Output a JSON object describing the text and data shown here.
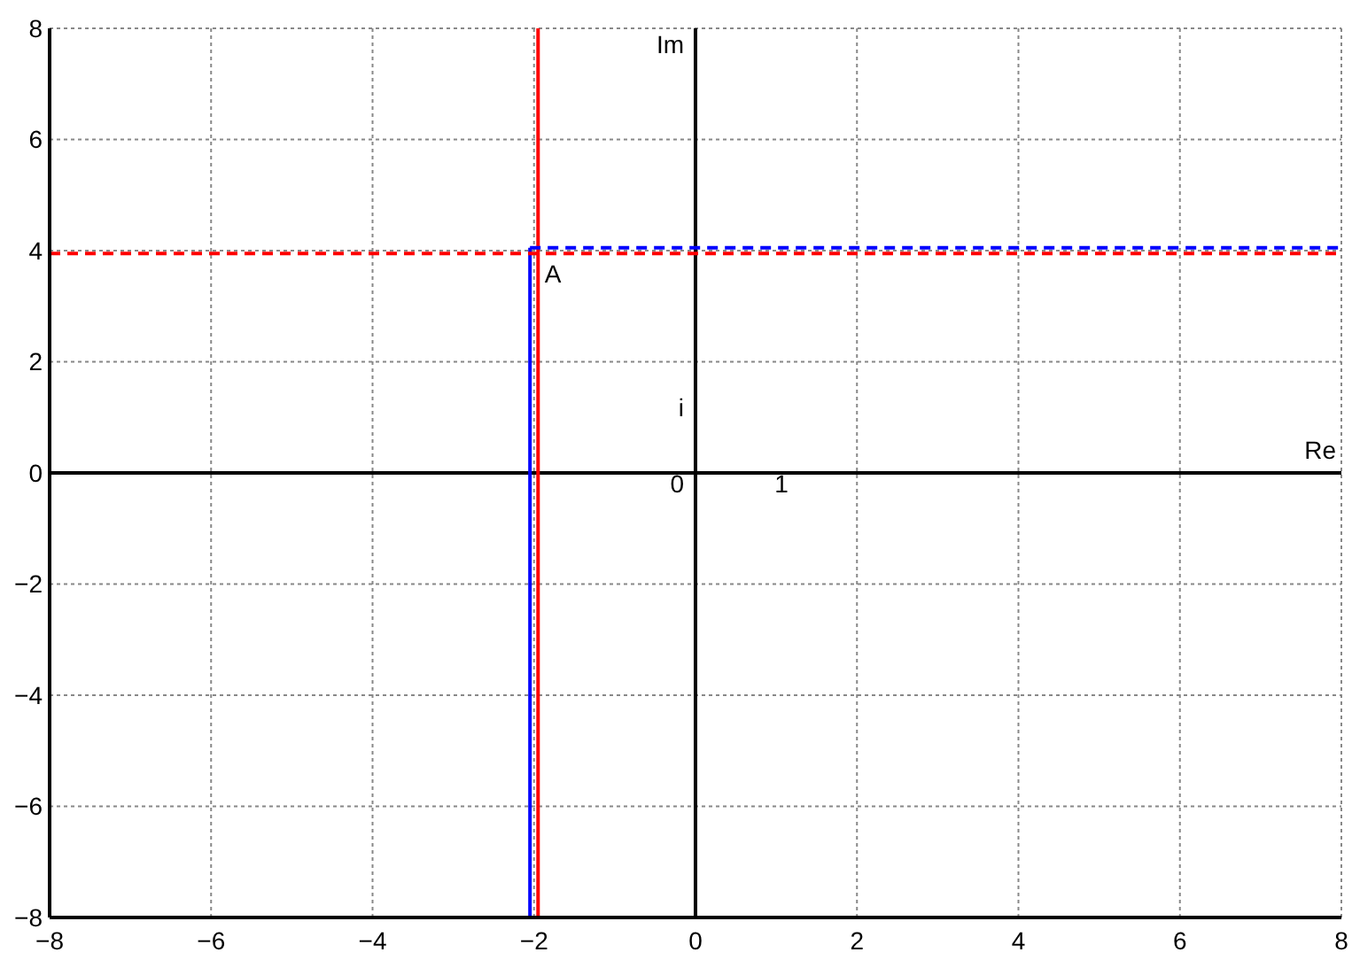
{
  "chart_data": {
    "type": "line",
    "xlim": [
      -8,
      8
    ],
    "ylim": [
      -8,
      8
    ],
    "xticks": [
      -8,
      -6,
      -4,
      -2,
      0,
      2,
      4,
      6,
      8
    ],
    "yticks": [
      -8,
      -6,
      -4,
      -2,
      0,
      2,
      4,
      6,
      8
    ],
    "grid": true,
    "marker": "none",
    "series": [
      {
        "color": "#000000",
        "x": [
          0,
          0
        ],
        "values": [
          -8,
          8
        ],
        "line_style": "solid"
      },
      {
        "color": "#000000",
        "x": [
          -8,
          8
        ],
        "values": [
          0,
          0
        ],
        "line_style": "solid"
      },
      {
        "color": "#ff0000",
        "x": [
          -1.95,
          -1.95
        ],
        "values": [
          8,
          -8
        ],
        "line_style": "solid"
      },
      {
        "color": "#0000ff",
        "x": [
          -2.05,
          -2.05
        ],
        "values": [
          4.05,
          -8
        ],
        "line_style": "solid"
      },
      {
        "color": "#ff0000",
        "x": [
          -8,
          8
        ],
        "values": [
          3.95,
          3.95
        ],
        "line_style": "dashed"
      },
      {
        "color": "#0000ff",
        "x": [
          -2.05,
          8
        ],
        "values": [
          4.05,
          4.05
        ],
        "line_style": "dashed"
      }
    ],
    "annotations": [
      "Im",
      "Re",
      "i",
      "0",
      "1",
      {
        "text": "A",
        "x": -2,
        "y": 4
      }
    ]
  }
}
